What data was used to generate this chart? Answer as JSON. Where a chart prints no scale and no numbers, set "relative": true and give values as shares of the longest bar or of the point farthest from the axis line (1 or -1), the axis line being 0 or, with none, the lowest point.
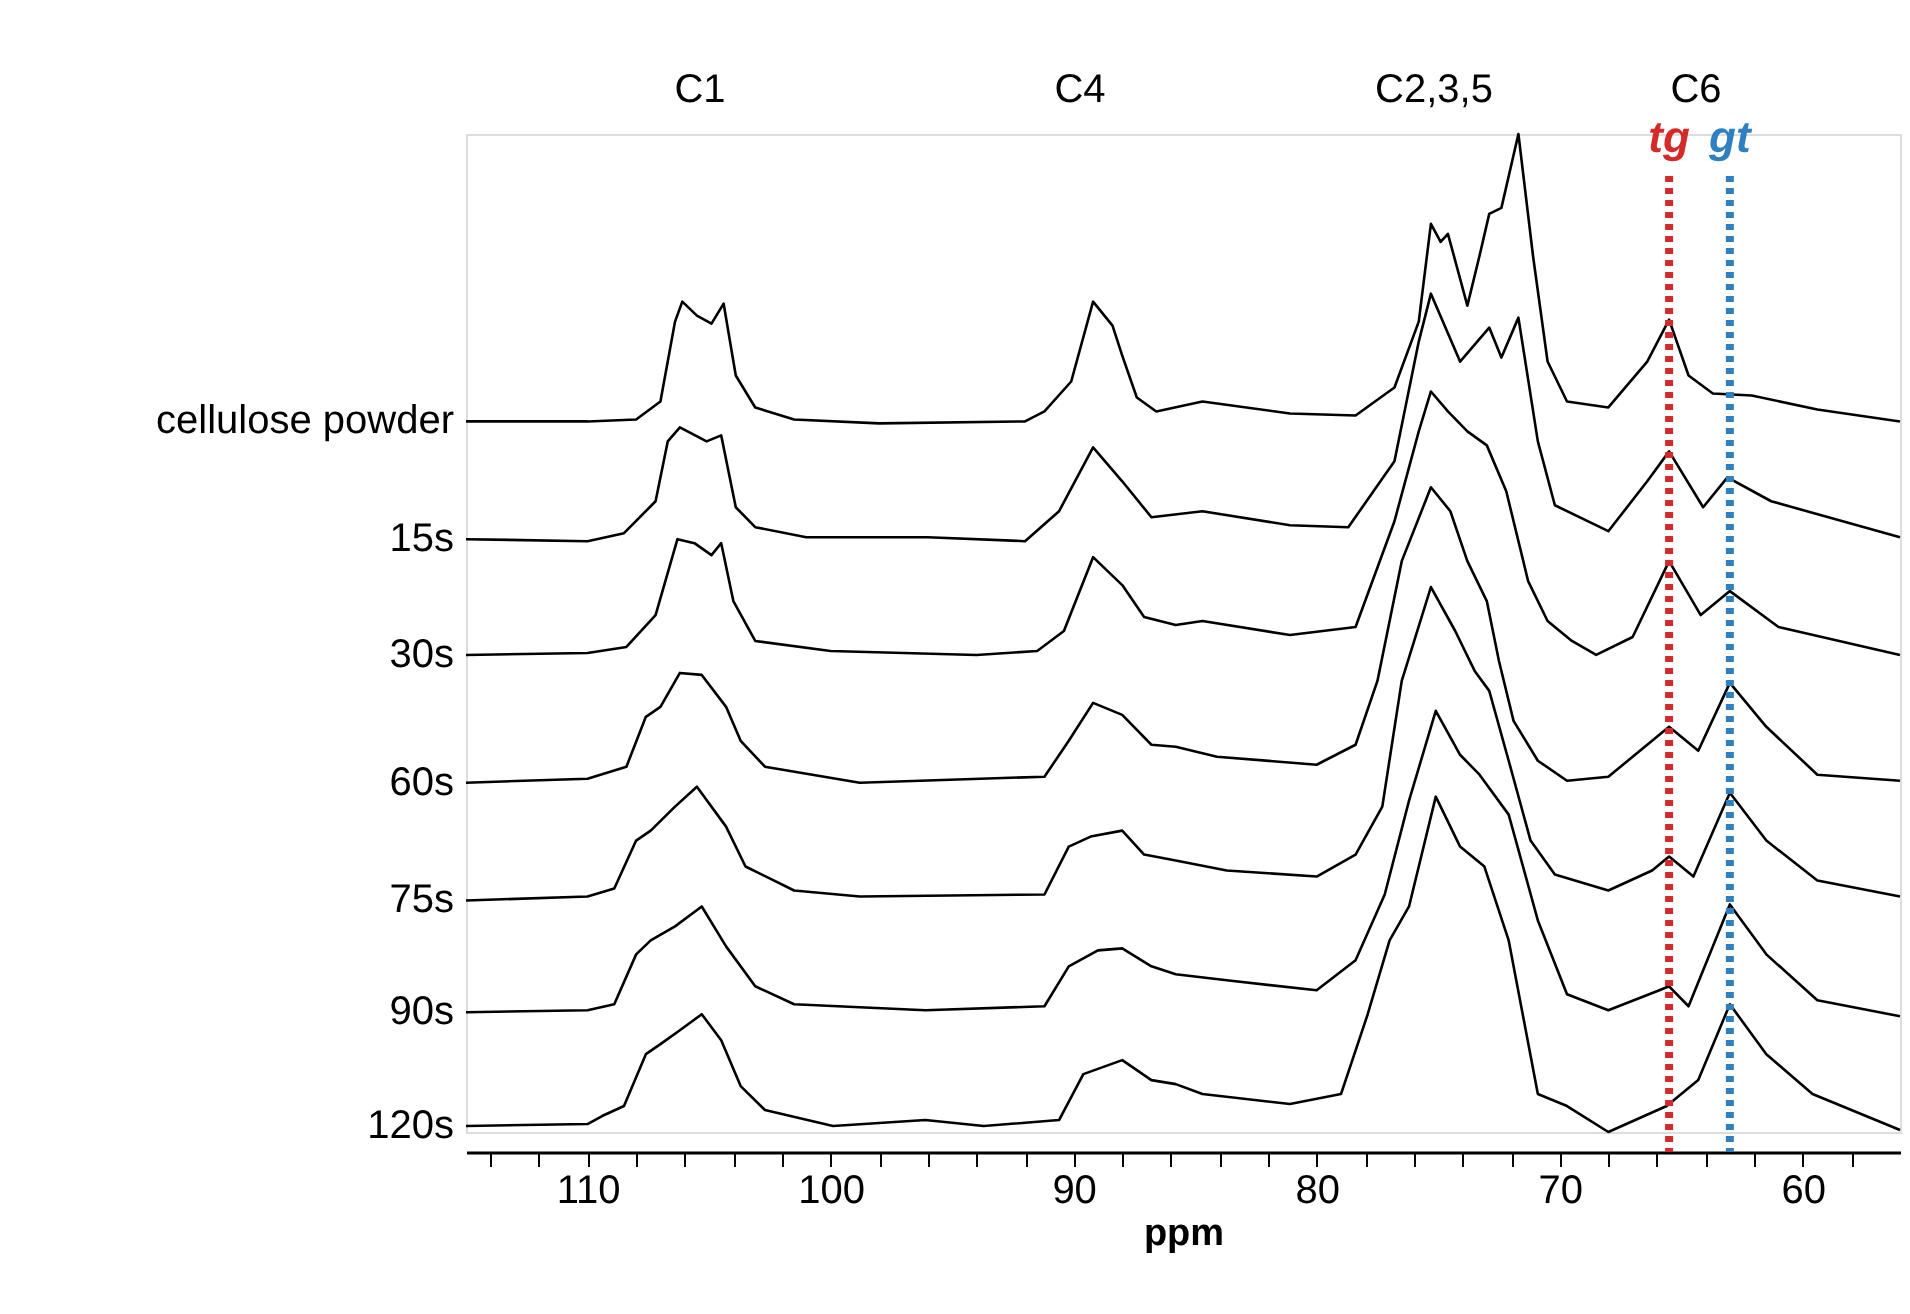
{
  "chart_data": {
    "type": "line",
    "relative": true,
    "xlabel": "ppm",
    "xlim": [
      115,
      56
    ],
    "xticks": [
      {
        "value": 114,
        "label": null
      },
      {
        "value": 112,
        "label": null
      },
      110,
      {
        "value": 108,
        "label": null
      },
      {
        "value": 106,
        "label": null
      },
      {
        "value": 104,
        "label": null
      },
      {
        "value": 102,
        "label": null
      },
      100,
      {
        "value": 98,
        "label": null
      },
      {
        "value": 96,
        "label": null
      },
      {
        "value": 94,
        "label": null
      },
      {
        "value": 92,
        "label": null
      },
      90,
      {
        "value": 88,
        "label": null
      },
      {
        "value": 86,
        "label": null
      },
      {
        "value": 84,
        "label": null
      },
      {
        "value": 82,
        "label": null
      },
      80,
      {
        "value": 78,
        "label": null
      },
      {
        "value": 76,
        "label": null
      },
      {
        "value": 74,
        "label": null
      },
      {
        "value": 72,
        "label": null
      },
      70,
      {
        "value": 68,
        "label": null
      },
      {
        "value": 66,
        "label": null
      },
      {
        "value": 64,
        "label": null
      },
      {
        "value": 62,
        "label": null
      },
      60,
      {
        "value": 58,
        "label": null
      }
    ],
    "grid": false,
    "legend": false,
    "marker": "none",
    "line_style": "solid",
    "annotations": [
      "C1",
      "C4",
      "C2,3,5",
      "C6"
    ],
    "ref_lines": [
      {
        "axis": "x",
        "value": 65.5,
        "label": "tg",
        "color": "#d42a2a",
        "line_style": "dotted"
      },
      {
        "axis": "x",
        "value": 63.0,
        "label": "gt",
        "color": "#2f80c0",
        "line_style": "dotted"
      }
    ],
    "series": [
      {
        "name": "cellulose powder",
        "color": "#000000",
        "x": [
          115,
          110,
          108,
          107.0,
          106.4,
          106.1,
          105.5,
          104.9,
          104.4,
          103.9,
          103.1,
          101.5,
          98,
          92,
          91.2,
          90.1,
          89.2,
          88.4,
          88.0,
          87.4,
          86.6,
          84.7,
          81.1,
          78.4,
          76.8,
          75.8,
          75.3,
          74.9,
          74.6,
          73.8,
          73.3,
          72.9,
          72.4,
          71.7,
          71.1,
          70.5,
          69.7,
          68.0,
          66.4,
          65.5,
          64.7,
          63.7,
          62.1,
          59.4,
          56
        ],
        "values": [
          0.712,
          0.712,
          0.714,
          0.732,
          0.812,
          0.832,
          0.818,
          0.81,
          0.83,
          0.758,
          0.726,
          0.714,
          0.71,
          0.712,
          0.722,
          0.752,
          0.832,
          0.808,
          0.778,
          0.736,
          0.722,
          0.732,
          0.72,
          0.718,
          0.746,
          0.812,
          0.91,
          0.892,
          0.9,
          0.828,
          0.878,
          0.92,
          0.926,
          1.0,
          0.878,
          0.772,
          0.732,
          0.726,
          0.772,
          0.814,
          0.758,
          0.74,
          0.738,
          0.724,
          0.712
        ]
      },
      {
        "name": "15s",
        "color": "#000000",
        "x": [
          115,
          110,
          108.5,
          107.2,
          106.7,
          106.2,
          105.1,
          104.5,
          103.9,
          103.1,
          101,
          96,
          92,
          90.6,
          89.2,
          88.0,
          86.8,
          84.7,
          81.1,
          78.7,
          76.8,
          75.8,
          75.3,
          74.1,
          72.9,
          72.4,
          71.7,
          70.9,
          70.2,
          68.0,
          66.4,
          65.5,
          64.1,
          63.1,
          61.3,
          56
        ],
        "values": [
          0.594,
          0.592,
          0.6,
          0.632,
          0.692,
          0.706,
          0.692,
          0.698,
          0.626,
          0.606,
          0.596,
          0.596,
          0.592,
          0.622,
          0.686,
          0.652,
          0.616,
          0.622,
          0.608,
          0.606,
          0.672,
          0.792,
          0.84,
          0.772,
          0.806,
          0.776,
          0.816,
          0.692,
          0.628,
          0.602,
          0.652,
          0.682,
          0.626,
          0.656,
          0.632,
          0.596
        ]
      },
      {
        "name": "30s",
        "color": "#000000",
        "x": [
          115,
          110,
          108.4,
          107.2,
          106.3,
          105.6,
          104.9,
          104.5,
          104.0,
          103.1,
          100,
          94,
          91.5,
          90.4,
          89.2,
          88.0,
          87.1,
          85.8,
          84.7,
          81.1,
          78.4,
          76.8,
          75.8,
          75.3,
          74.6,
          73.8,
          73.0,
          72.2,
          71.3,
          70.5,
          69.5,
          68.5,
          67,
          65.5,
          64.2,
          63.0,
          61,
          56
        ],
        "values": [
          0.478,
          0.48,
          0.486,
          0.518,
          0.594,
          0.59,
          0.578,
          0.59,
          0.532,
          0.492,
          0.482,
          0.478,
          0.482,
          0.502,
          0.576,
          0.548,
          0.516,
          0.508,
          0.512,
          0.498,
          0.506,
          0.612,
          0.702,
          0.742,
          0.722,
          0.702,
          0.688,
          0.642,
          0.552,
          0.512,
          0.492,
          0.478,
          0.496,
          0.572,
          0.518,
          0.542,
          0.506,
          0.478
        ]
      },
      {
        "name": "60s",
        "color": "#000000",
        "x": [
          115,
          110,
          108.4,
          107.6,
          107.0,
          106.2,
          105.3,
          104.3,
          103.7,
          102.7,
          98.8,
          91.2,
          90.2,
          89.2,
          88.0,
          86.8,
          85.8,
          84.1,
          80.0,
          78.4,
          77.5,
          76.5,
          75.3,
          74.5,
          73.8,
          73.0,
          72.5,
          71.9,
          70.9,
          69.7,
          68.0,
          66.2,
          65.5,
          64.3,
          63.0,
          61.5,
          59.4,
          56
        ],
        "values": [
          0.35,
          0.354,
          0.366,
          0.416,
          0.426,
          0.46,
          0.458,
          0.426,
          0.392,
          0.366,
          0.35,
          0.356,
          0.392,
          0.43,
          0.418,
          0.388,
          0.386,
          0.376,
          0.368,
          0.388,
          0.452,
          0.572,
          0.646,
          0.622,
          0.572,
          0.532,
          0.472,
          0.412,
          0.372,
          0.352,
          0.356,
          0.392,
          0.406,
          0.382,
          0.45,
          0.406,
          0.358,
          0.352
        ]
      },
      {
        "name": "75s",
        "color": "#000000",
        "x": [
          115,
          110,
          108.9,
          108.0,
          107.4,
          106.4,
          105.5,
          104.3,
          103.5,
          101.5,
          98.8,
          91.2,
          90.2,
          89.3,
          88.0,
          87.1,
          85.8,
          83.7,
          80.0,
          78.4,
          77.3,
          76.5,
          75.3,
          74.3,
          73.5,
          72.9,
          72.1,
          71.2,
          70.2,
          68.0,
          66.2,
          65.5,
          64.5,
          63.0,
          61.5,
          59.4,
          56
        ],
        "values": [
          0.232,
          0.236,
          0.244,
          0.292,
          0.302,
          0.326,
          0.346,
          0.306,
          0.266,
          0.242,
          0.236,
          0.238,
          0.286,
          0.296,
          0.302,
          0.278,
          0.272,
          0.262,
          0.256,
          0.278,
          0.326,
          0.452,
          0.546,
          0.502,
          0.462,
          0.442,
          0.372,
          0.292,
          0.258,
          0.242,
          0.262,
          0.276,
          0.256,
          0.34,
          0.292,
          0.252,
          0.236
        ]
      },
      {
        "name": "90s",
        "color": "#000000",
        "x": [
          115,
          110,
          108.9,
          108.0,
          107.4,
          106.4,
          105.3,
          104.3,
          103.1,
          101.5,
          96.1,
          91.2,
          90.2,
          89.0,
          88.0,
          86.8,
          85.8,
          83.7,
          80.0,
          78.4,
          77.2,
          76.2,
          75.1,
          74.1,
          73.3,
          72.1,
          70.9,
          69.7,
          68.0,
          65.9,
          65.5,
          64.7,
          63.0,
          61.5,
          59.4,
          56
        ],
        "values": [
          0.12,
          0.122,
          0.128,
          0.178,
          0.192,
          0.206,
          0.226,
          0.186,
          0.146,
          0.128,
          0.122,
          0.126,
          0.166,
          0.182,
          0.184,
          0.166,
          0.158,
          0.152,
          0.142,
          0.172,
          0.238,
          0.332,
          0.422,
          0.378,
          0.358,
          0.318,
          0.212,
          0.138,
          0.122,
          0.142,
          0.146,
          0.126,
          0.228,
          0.178,
          0.132,
          0.116
        ]
      },
      {
        "name": "120s",
        "color": "#000000",
        "x": [
          115,
          110,
          109.4,
          108.5,
          107.6,
          107.0,
          106.2,
          105.3,
          104.5,
          103.7,
          102.7,
          99.9,
          96.1,
          93.7,
          90.6,
          89.6,
          88.0,
          86.8,
          85.8,
          84.7,
          81.1,
          79.0,
          77.9,
          77.0,
          76.2,
          75.1,
          74.1,
          73.1,
          72.1,
          70.9,
          69.7,
          68.0,
          65.6,
          64.3,
          63.0,
          61.5,
          59.6,
          56
        ],
        "values": [
          0.006,
          0.008,
          0.016,
          0.026,
          0.078,
          0.088,
          0.102,
          0.118,
          0.092,
          0.046,
          0.022,
          0.006,
          0.012,
          0.006,
          0.012,
          0.058,
          0.072,
          0.052,
          0.048,
          0.038,
          0.028,
          0.038,
          0.118,
          0.192,
          0.226,
          0.336,
          0.286,
          0.266,
          0.192,
          0.038,
          0.026,
          0.0,
          0.026,
          0.052,
          0.128,
          0.078,
          0.038,
          0.002
        ]
      }
    ]
  }
}
